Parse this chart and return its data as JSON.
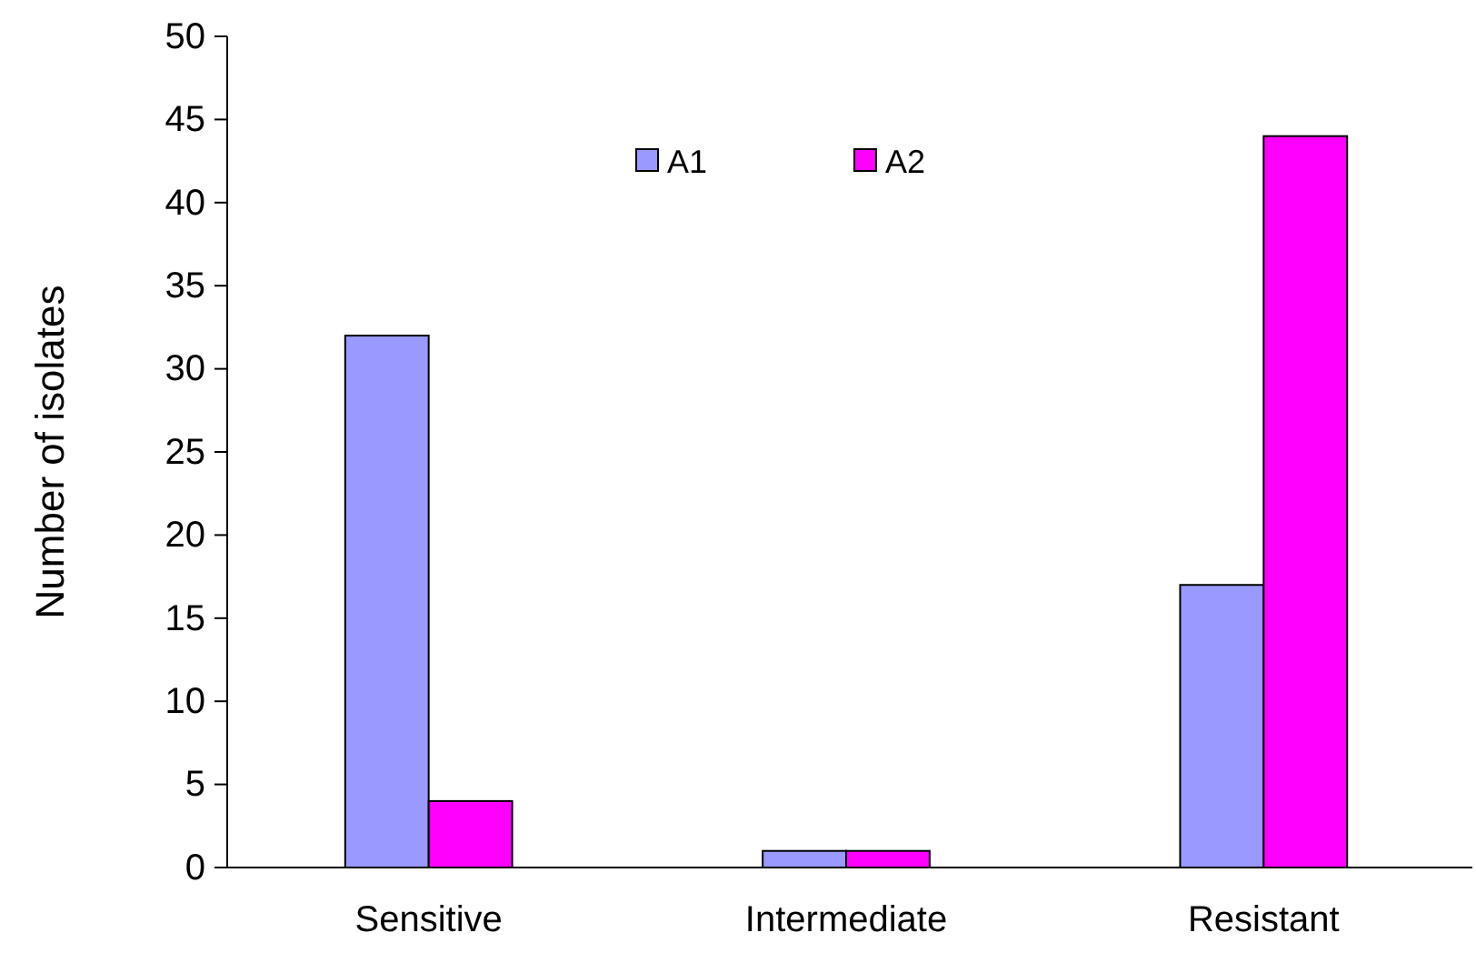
{
  "chart_data": {
    "type": "bar",
    "ylabel": "Number of isolates",
    "categories": [
      "Sensitive",
      "Intermediate",
      "Resistant"
    ],
    "series": [
      {
        "name": "A1",
        "color": "#9999ff",
        "values": [
          32,
          1,
          17
        ]
      },
      {
        "name": "A2",
        "color": "#ff00ff",
        "values": [
          4,
          1,
          44
        ]
      }
    ],
    "ylim": [
      0,
      50
    ],
    "yticks": [
      0,
      5,
      10,
      15,
      20,
      25,
      30,
      35,
      40,
      45,
      50
    ],
    "grid": false,
    "legend": "top"
  }
}
